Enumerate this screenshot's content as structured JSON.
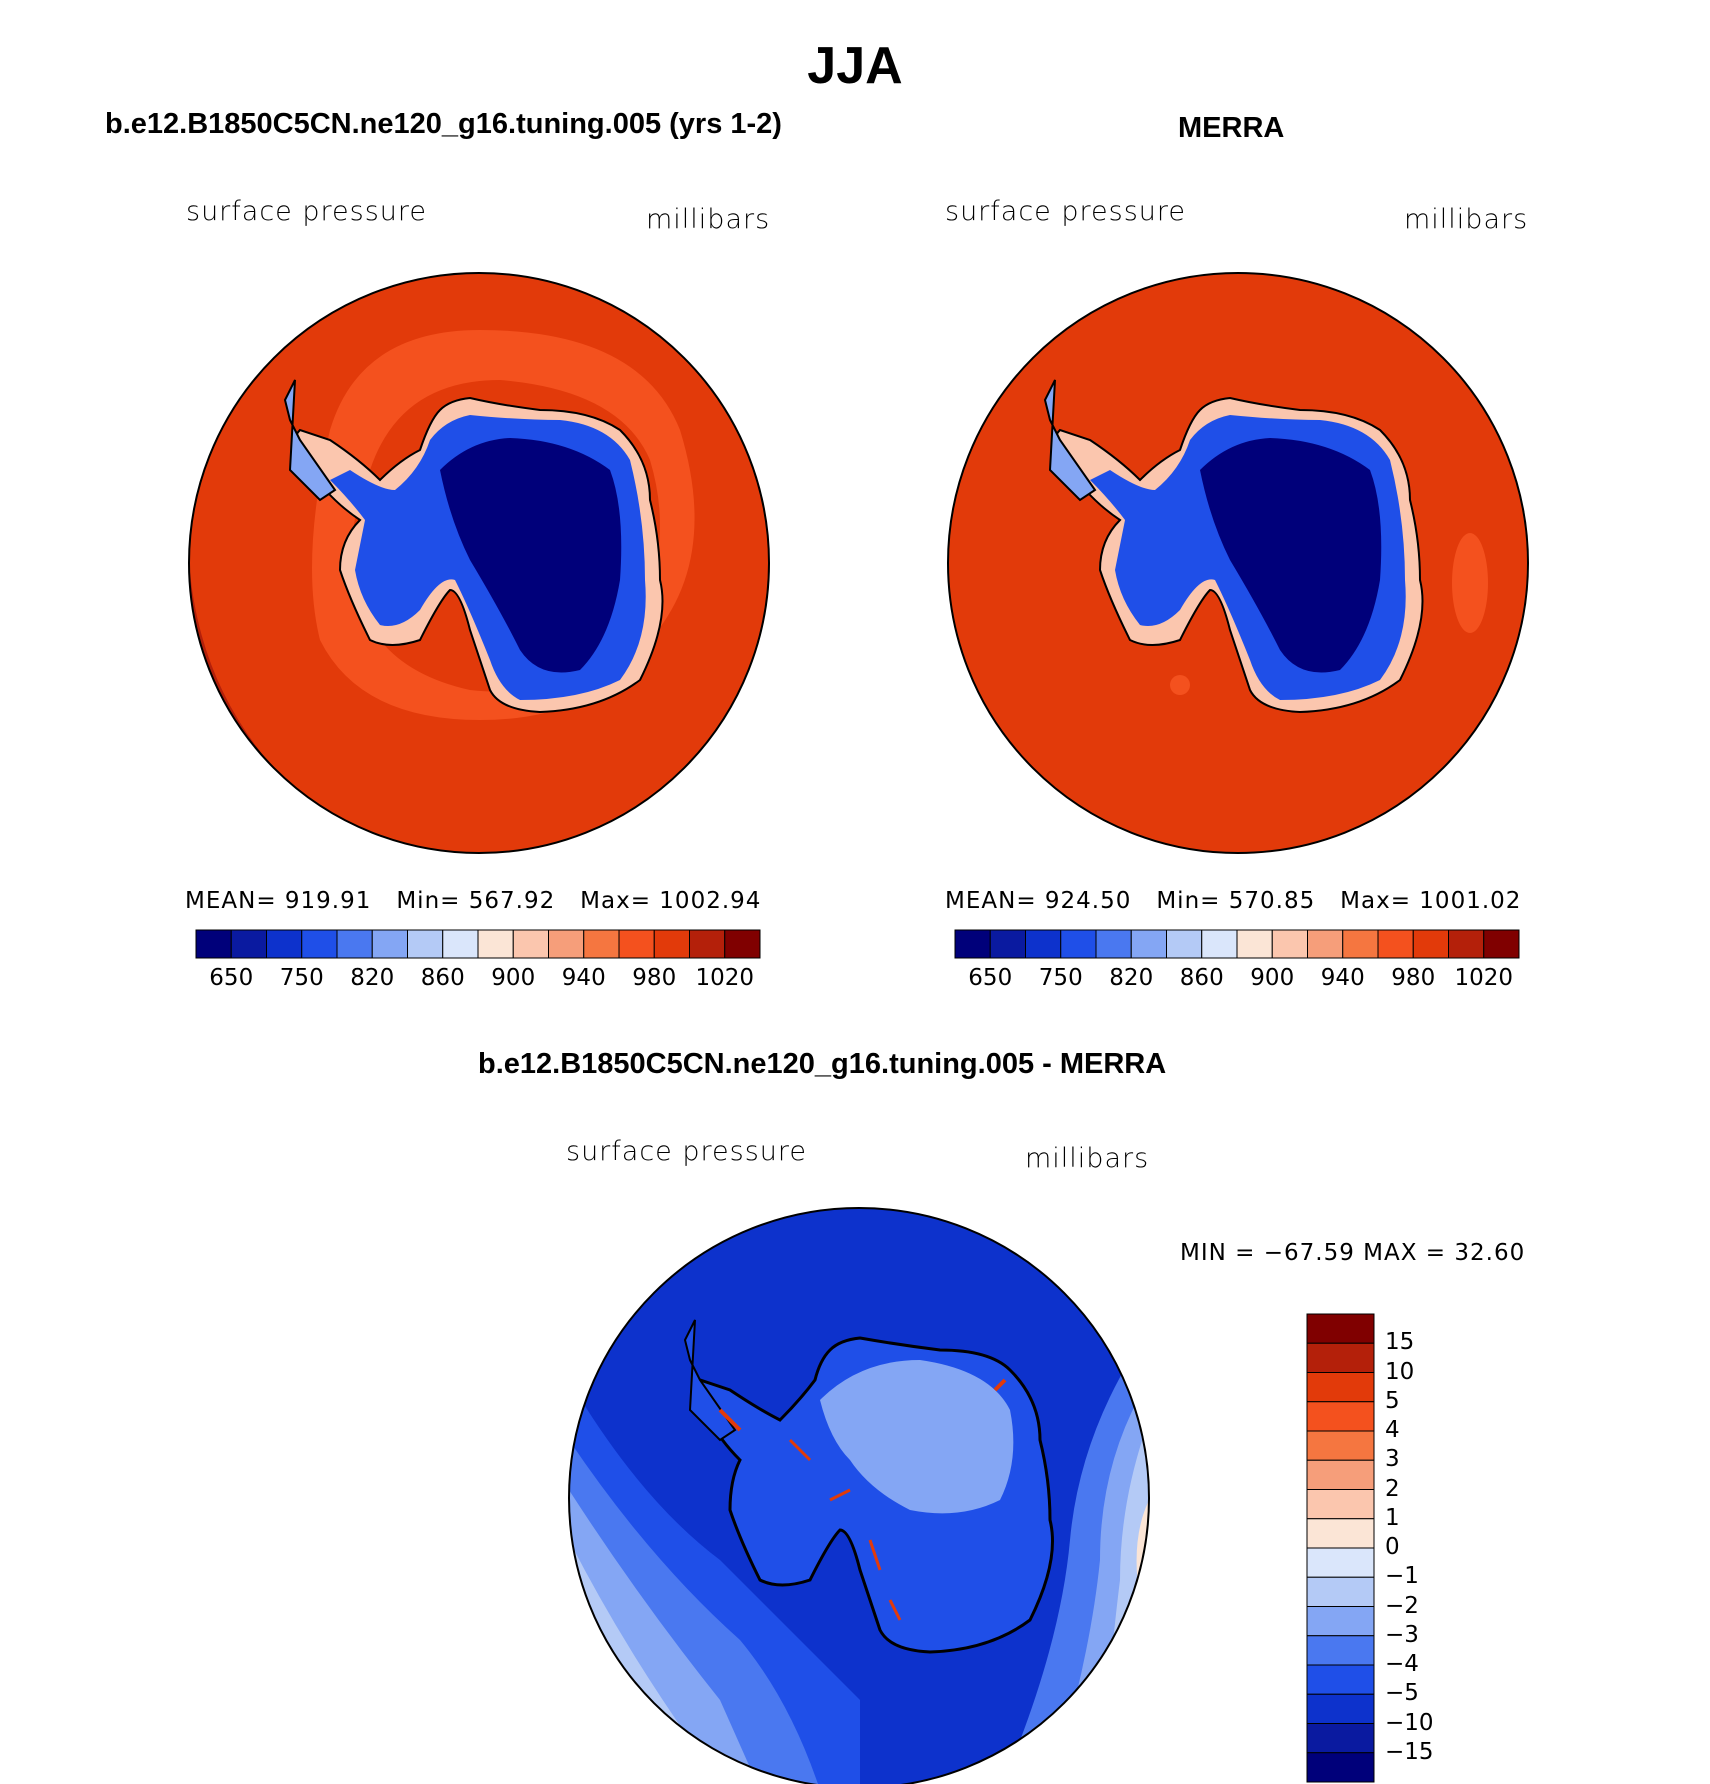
{
  "page": {
    "title": "JJA"
  },
  "colors": {
    "abs_levels": [
      "#00007a",
      "#0a1aa0",
      "#0d32cc",
      "#1f4fe8",
      "#4a78f0",
      "#84a6f4",
      "#b4caf6",
      "#dae6fb",
      "#fbe5d6",
      "#fbc6ae",
      "#f69e7a",
      "#f57640",
      "#f4511e",
      "#e23a0a",
      "#b4200a",
      "#800000"
    ],
    "diff_levels": [
      "#00007a",
      "#0a1aa0",
      "#0d32cc",
      "#1f4fe8",
      "#4a78f0",
      "#84a6f4",
      "#b4caf6",
      "#dae6fb",
      "#fbe5d6",
      "#fbc6ae",
      "#f69e7a",
      "#f57640",
      "#f4511e",
      "#e23a0a",
      "#b4200a",
      "#800000"
    ]
  },
  "panels": [
    {
      "title": "b.e12.B1850C5CN.ne120_g16.tuning.005 (yrs 1-2)",
      "left_label": "surface pressure",
      "right_label": "millibars",
      "stats": {
        "mean_label": "MEAN=",
        "mean": "919.91",
        "min_label": "Min=",
        "min": "567.92",
        "max_label": "Max=",
        "max": "1002.94"
      }
    },
    {
      "title": "MERRA",
      "left_label": "surface pressure",
      "right_label": "millibars",
      "stats": {
        "mean_label": "MEAN=",
        "mean": "924.50",
        "min_label": "Min=",
        "min": "570.85",
        "max_label": "Max=",
        "max": "1001.02"
      }
    },
    {
      "title": "b.e12.B1850C5CN.ne120_g16.tuning.005 - MERRA",
      "left_label": "surface pressure",
      "right_label": "millibars",
      "stats": {
        "minmax": "MIN = −67.59 MAX =   32.60"
      }
    }
  ],
  "colorbar_abs": {
    "ticks": [
      "650",
      "750",
      "820",
      "860",
      "900",
      "940",
      "980",
      "1020"
    ]
  },
  "colorbar_diff": {
    "ticks": [
      "15",
      "10",
      "5",
      "4",
      "3",
      "2",
      "1",
      "0",
      "−1",
      "−2",
      "−3",
      "−4",
      "−5",
      "−10",
      "−15"
    ]
  },
  "chart_data": [
    {
      "type": "heatmap",
      "title": "b.e12.B1850C5CN.ne120_g16.tuning.005 (yrs 1-2)",
      "projection": "south polar stereographic",
      "variable": "surface pressure",
      "units": "millibars",
      "mean": 919.91,
      "min": 567.92,
      "max": 1002.94,
      "contour_levels": [
        650,
        700,
        750,
        800,
        820,
        840,
        860,
        880,
        900,
        920,
        940,
        960,
        980,
        1000,
        1020
      ]
    },
    {
      "type": "heatmap",
      "title": "MERRA",
      "projection": "south polar stereographic",
      "variable": "surface pressure",
      "units": "millibars",
      "mean": 924.5,
      "min": 570.85,
      "max": 1001.02,
      "contour_levels": [
        650,
        700,
        750,
        800,
        820,
        840,
        860,
        880,
        900,
        920,
        940,
        960,
        980,
        1000,
        1020
      ]
    },
    {
      "type": "heatmap",
      "title": "b.e12.B1850C5CN.ne120_g16.tuning.005 - MERRA",
      "projection": "south polar stereographic",
      "variable": "surface pressure",
      "units": "millibars",
      "min": -67.59,
      "max": 32.6,
      "contour_levels": [
        -15,
        -10,
        -5,
        -4,
        -3,
        -2,
        -1,
        0,
        1,
        2,
        3,
        4,
        5,
        10,
        15
      ]
    }
  ]
}
